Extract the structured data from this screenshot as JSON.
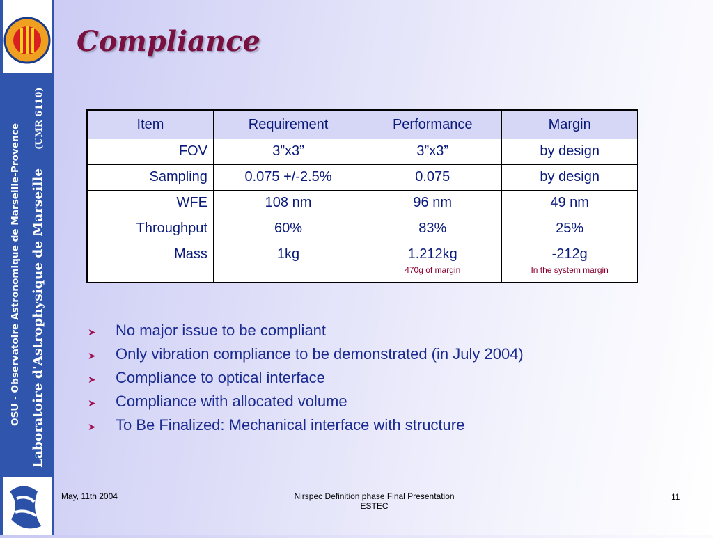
{
  "sidebar": {
    "line1": "OSU - Observatoire Astronomique de Marseille-Provence",
    "line2": "Laboratoire d'Astrophysique de Marseille",
    "line2_suffix": "(UMR 6110)"
  },
  "title": "Compliance",
  "table": {
    "header": [
      "Item",
      "Requirement",
      "Performance",
      "Margin"
    ],
    "rows": [
      [
        {
          "main": "FOV"
        },
        {
          "main": "3”x3”"
        },
        {
          "main": "3”x3”"
        },
        {
          "main": "by design"
        }
      ],
      [
        {
          "main": "Sampling"
        },
        {
          "main": "0.075 +/-2.5%"
        },
        {
          "main": "0.075"
        },
        {
          "main": "by design"
        }
      ],
      [
        {
          "main": "WFE"
        },
        {
          "main": "108 nm"
        },
        {
          "main": "96 nm"
        },
        {
          "main": "49 nm"
        }
      ],
      [
        {
          "main": "Throughput"
        },
        {
          "main": "60%"
        },
        {
          "main": "83%"
        },
        {
          "main": "25%"
        }
      ],
      [
        {
          "main": "Mass"
        },
        {
          "main": "1kg"
        },
        {
          "main": "1.212kg",
          "note": "470g of margin"
        },
        {
          "main": "-212g",
          "note": "In the system margin"
        }
      ]
    ]
  },
  "bullets": [
    "No major issue to be compliant",
    "Only vibration compliance to be demonstrated (in July 2004)",
    "Compliance to optical interface",
    "Compliance with allocated volume",
    "To Be Finalized: Mechanical interface with structure"
  ],
  "footer": {
    "date": "May, 11th 2004",
    "center_line1": "Nirspec Definition phase Final Presentation",
    "center_line2": "ESTEC",
    "page": "11"
  }
}
